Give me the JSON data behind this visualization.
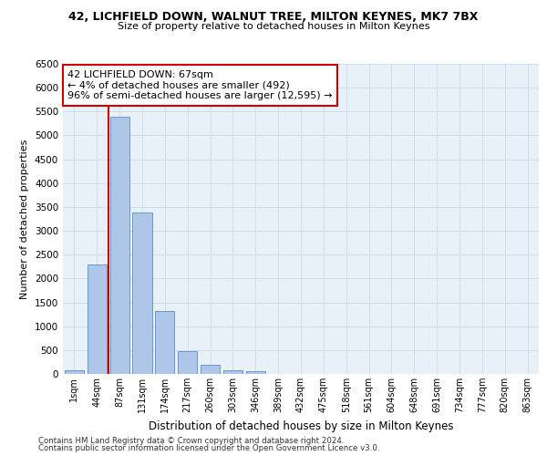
{
  "title1": "42, LICHFIELD DOWN, WALNUT TREE, MILTON KEYNES, MK7 7BX",
  "title2": "Size of property relative to detached houses in Milton Keynes",
  "xlabel": "Distribution of detached houses by size in Milton Keynes",
  "ylabel": "Number of detached properties",
  "categories": [
    "1sqm",
    "44sqm",
    "87sqm",
    "131sqm",
    "174sqm",
    "217sqm",
    "260sqm",
    "303sqm",
    "346sqm",
    "389sqm",
    "432sqm",
    "475sqm",
    "518sqm",
    "561sqm",
    "604sqm",
    "648sqm",
    "691sqm",
    "734sqm",
    "777sqm",
    "820sqm",
    "863sqm"
  ],
  "values": [
    70,
    2300,
    5400,
    3380,
    1320,
    480,
    185,
    80,
    55,
    0,
    0,
    0,
    0,
    0,
    0,
    0,
    0,
    0,
    0,
    0,
    0
  ],
  "bar_color": "#aec6e8",
  "bar_edge_color": "#5a8fc0",
  "vline_color": "#cc0000",
  "vline_x": 1.5,
  "annotation_text": "42 LICHFIELD DOWN: 67sqm\n← 4% of detached houses are smaller (492)\n96% of semi-detached houses are larger (12,595) →",
  "annotation_box_color": "#ffffff",
  "annotation_box_edge": "#cc0000",
  "ylim": [
    0,
    6500
  ],
  "yticks": [
    0,
    500,
    1000,
    1500,
    2000,
    2500,
    3000,
    3500,
    4000,
    4500,
    5000,
    5500,
    6000,
    6500
  ],
  "grid_color": "#ccddee",
  "bg_color": "#e8f0f8",
  "footer1": "Contains HM Land Registry data © Crown copyright and database right 2024.",
  "footer2": "Contains public sector information licensed under the Open Government Licence v3.0."
}
